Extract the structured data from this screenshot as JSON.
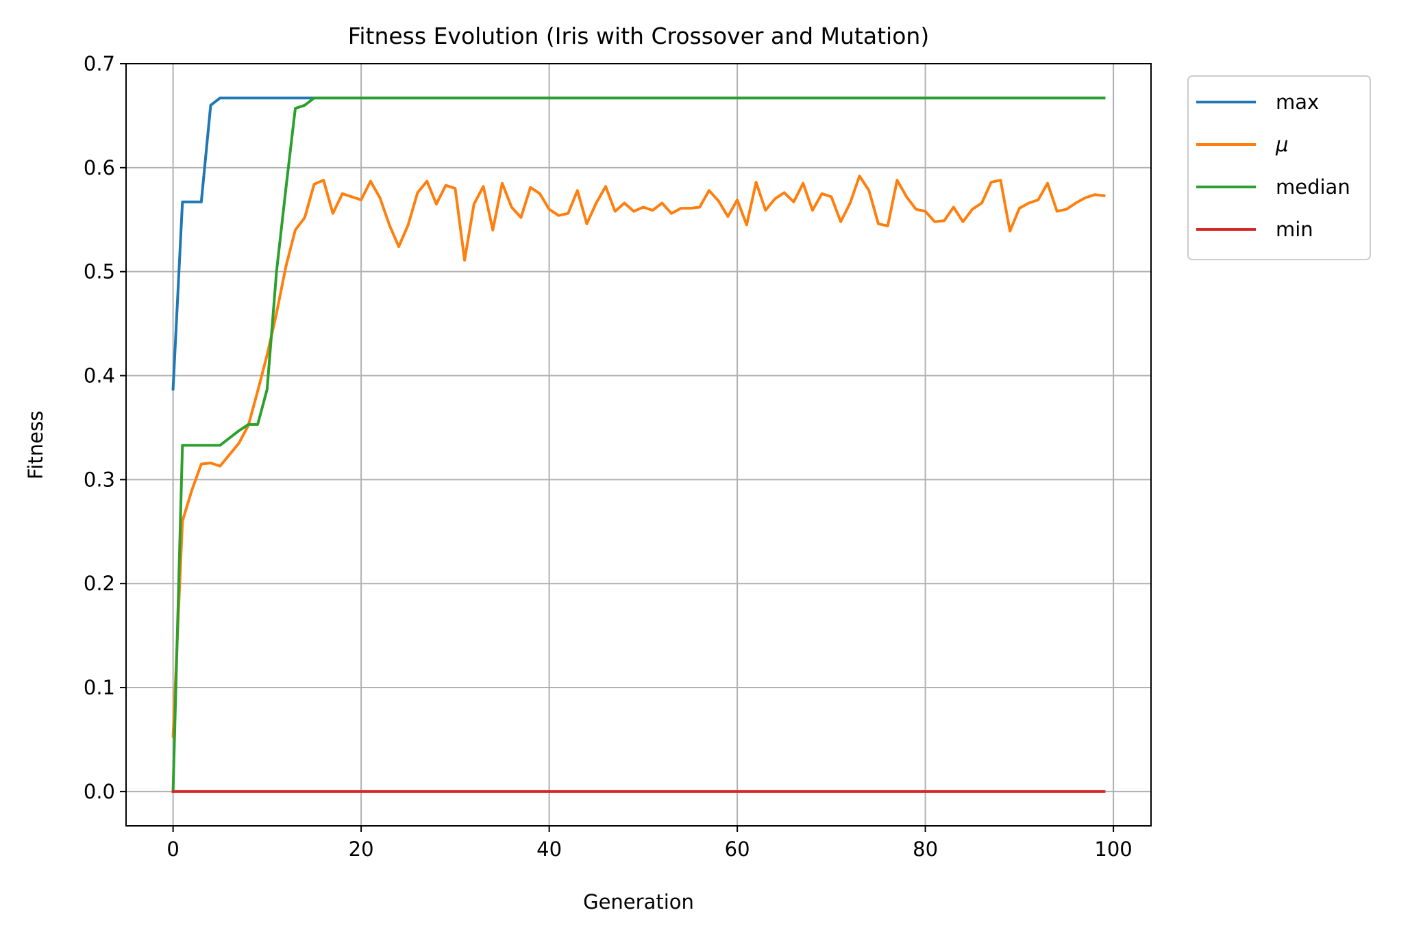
{
  "chart_data": {
    "type": "line",
    "title": "Fitness Evolution (Iris with Crossover and Mutation)",
    "xlabel": "Generation",
    "ylabel": "Fitness",
    "xlim": [
      -5,
      104
    ],
    "ylim": [
      -0.033,
      0.7
    ],
    "xticks": [
      0,
      20,
      40,
      60,
      80,
      100
    ],
    "yticks": [
      0.0,
      0.1,
      0.2,
      0.3,
      0.4,
      0.5,
      0.6,
      0.7
    ],
    "xtick_labels": [
      "0",
      "20",
      "40",
      "60",
      "80",
      "100"
    ],
    "ytick_labels": [
      "0.0",
      "0.1",
      "0.2",
      "0.3",
      "0.4",
      "0.5",
      "0.6",
      "0.7"
    ],
    "grid": true,
    "legend_position": "outside-top-right",
    "series": [
      {
        "name": "max",
        "color": "#1f77b4",
        "values": [
          0.387,
          0.567,
          0.567,
          0.567,
          0.66,
          0.667,
          0.667,
          0.667,
          0.667,
          0.667,
          0.667,
          0.667,
          0.667,
          0.667,
          0.667,
          0.667,
          0.667,
          0.667,
          0.667,
          0.667,
          0.667,
          0.667,
          0.667,
          0.667,
          0.667,
          0.667,
          0.667,
          0.667,
          0.667,
          0.667,
          0.667,
          0.667,
          0.667,
          0.667,
          0.667,
          0.667,
          0.667,
          0.667,
          0.667,
          0.667,
          0.667,
          0.667,
          0.667,
          0.667,
          0.667,
          0.667,
          0.667,
          0.667,
          0.667,
          0.667,
          0.667,
          0.667,
          0.667,
          0.667,
          0.667,
          0.667,
          0.667,
          0.667,
          0.667,
          0.667,
          0.667,
          0.667,
          0.667,
          0.667,
          0.667,
          0.667,
          0.667,
          0.667,
          0.667,
          0.667,
          0.667,
          0.667,
          0.667,
          0.667,
          0.667,
          0.667,
          0.667,
          0.667,
          0.667,
          0.667,
          0.667,
          0.667,
          0.667,
          0.667,
          0.667,
          0.667,
          0.667,
          0.667,
          0.667,
          0.667,
          0.667,
          0.667,
          0.667,
          0.667,
          0.667,
          0.667,
          0.667,
          0.667,
          0.667,
          0.667
        ]
      },
      {
        "name": "μ",
        "color": "#ff7f0e",
        "values": [
          0.053,
          0.26,
          0.29,
          0.315,
          0.316,
          0.313,
          0.324,
          0.335,
          0.352,
          0.385,
          0.42,
          0.46,
          0.505,
          0.54,
          0.552,
          0.584,
          0.588,
          0.556,
          0.575,
          0.572,
          0.569,
          0.587,
          0.571,
          0.545,
          0.524,
          0.545,
          0.576,
          0.587,
          0.565,
          0.583,
          0.58,
          0.511,
          0.565,
          0.582,
          0.54,
          0.585,
          0.562,
          0.552,
          0.581,
          0.575,
          0.56,
          0.554,
          0.556,
          0.578,
          0.546,
          0.566,
          0.582,
          0.558,
          0.566,
          0.558,
          0.562,
          0.559,
          0.566,
          0.556,
          0.561,
          0.561,
          0.562,
          0.578,
          0.568,
          0.553,
          0.569,
          0.545,
          0.586,
          0.559,
          0.57,
          0.576,
          0.567,
          0.585,
          0.559,
          0.575,
          0.572,
          0.548,
          0.566,
          0.592,
          0.578,
          0.546,
          0.544,
          0.588,
          0.572,
          0.56,
          0.558,
          0.548,
          0.549,
          0.562,
          0.548,
          0.56,
          0.566,
          0.586,
          0.588,
          0.539,
          0.561,
          0.566,
          0.569,
          0.585,
          0.558,
          0.56,
          0.566,
          0.571,
          0.574,
          0.573
        ]
      },
      {
        "name": "median",
        "color": "#2ca02c",
        "values": [
          0.0,
          0.333,
          0.333,
          0.333,
          0.333,
          0.333,
          0.34,
          0.347,
          0.353,
          0.353,
          0.387,
          0.5,
          0.58,
          0.657,
          0.66,
          0.667,
          0.667,
          0.667,
          0.667,
          0.667,
          0.667,
          0.667,
          0.667,
          0.667,
          0.667,
          0.667,
          0.667,
          0.667,
          0.667,
          0.667,
          0.667,
          0.667,
          0.667,
          0.667,
          0.667,
          0.667,
          0.667,
          0.667,
          0.667,
          0.667,
          0.667,
          0.667,
          0.667,
          0.667,
          0.667,
          0.667,
          0.667,
          0.667,
          0.667,
          0.667,
          0.667,
          0.667,
          0.667,
          0.667,
          0.667,
          0.667,
          0.667,
          0.667,
          0.667,
          0.667,
          0.667,
          0.667,
          0.667,
          0.667,
          0.667,
          0.667,
          0.667,
          0.667,
          0.667,
          0.667,
          0.667,
          0.667,
          0.667,
          0.667,
          0.667,
          0.667,
          0.667,
          0.667,
          0.667,
          0.667,
          0.667,
          0.667,
          0.667,
          0.667,
          0.667,
          0.667,
          0.667,
          0.667,
          0.667,
          0.667,
          0.667,
          0.667,
          0.667,
          0.667,
          0.667,
          0.667,
          0.667,
          0.667,
          0.667,
          0.667
        ]
      },
      {
        "name": "min",
        "color": "#d62728",
        "values": [
          0.0,
          0.0,
          0.0,
          0.0,
          0.0,
          0.0,
          0.0,
          0.0,
          0.0,
          0.0,
          0.0,
          0.0,
          0.0,
          0.0,
          0.0,
          0.0,
          0.0,
          0.0,
          0.0,
          0.0,
          0.0,
          0.0,
          0.0,
          0.0,
          0.0,
          0.0,
          0.0,
          0.0,
          0.0,
          0.0,
          0.0,
          0.0,
          0.0,
          0.0,
          0.0,
          0.0,
          0.0,
          0.0,
          0.0,
          0.0,
          0.0,
          0.0,
          0.0,
          0.0,
          0.0,
          0.0,
          0.0,
          0.0,
          0.0,
          0.0,
          0.0,
          0.0,
          0.0,
          0.0,
          0.0,
          0.0,
          0.0,
          0.0,
          0.0,
          0.0,
          0.0,
          0.0,
          0.0,
          0.0,
          0.0,
          0.0,
          0.0,
          0.0,
          0.0,
          0.0,
          0.0,
          0.0,
          0.0,
          0.0,
          0.0,
          0.0,
          0.0,
          0.0,
          0.0,
          0.0,
          0.0,
          0.0,
          0.0,
          0.0,
          0.0,
          0.0,
          0.0,
          0.0,
          0.0,
          0.0,
          0.0,
          0.0,
          0.0,
          0.0,
          0.0,
          0.0,
          0.0,
          0.0,
          0.0,
          0.0
        ]
      }
    ]
  }
}
